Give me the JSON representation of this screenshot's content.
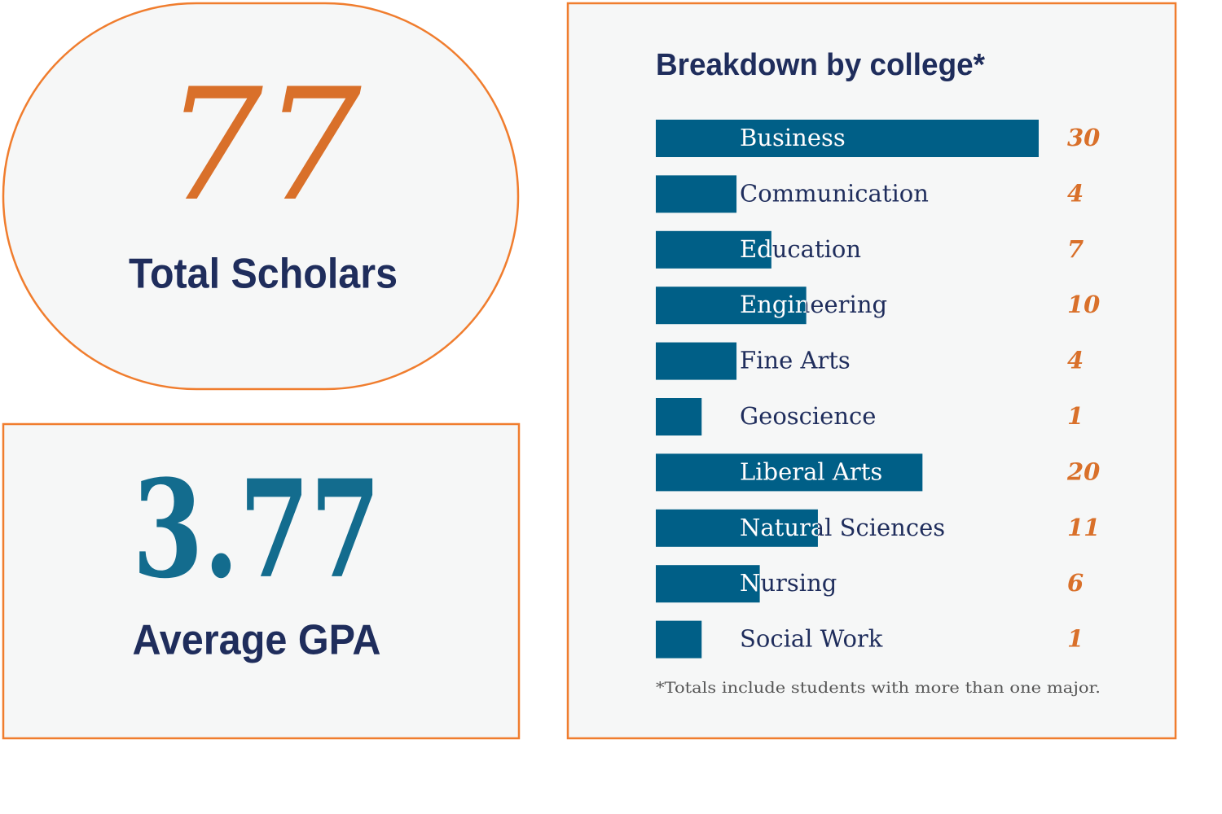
{
  "stats": [
    {
      "value": 77,
      "label": "Total Scholars"
    },
    {
      "value": 3.77,
      "label": "Average GPA"
    }
  ],
  "chart_data": {
    "type": "bar",
    "orientation": "horizontal",
    "title": "Breakdown by college*",
    "categories": [
      "Business",
      "Communication",
      "Education",
      "Engineering",
      "Fine Arts",
      "Geoscience",
      "Liberal Arts",
      "Natural Sciences",
      "Nursing",
      "Social Work"
    ],
    "values": [
      30,
      4,
      7,
      10,
      4,
      1,
      20,
      11,
      6,
      1
    ],
    "color": "#005f87",
    "note": "*Totals include students with more than one major."
  }
}
